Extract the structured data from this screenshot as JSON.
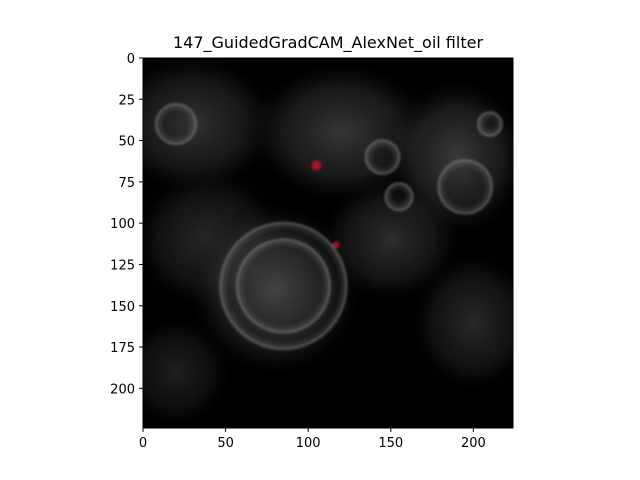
{
  "figure": {
    "title": "147_GuidedGradCAM_AlexNet_oil filter"
  },
  "image_panel": {
    "x_range": [
      0,
      224
    ],
    "y_range": [
      0,
      224
    ],
    "x_ticks": [
      0,
      50,
      100,
      150,
      200
    ],
    "y_ticks": [
      0,
      25,
      50,
      75,
      100,
      125,
      150,
      175,
      200
    ],
    "x_tick_labels": [
      "0",
      "50",
      "100",
      "150",
      "200"
    ],
    "y_tick_labels": [
      "0",
      "25",
      "50",
      "75",
      "100",
      "125",
      "150",
      "175",
      "200"
    ],
    "colors": {
      "background": "#000000",
      "heat_glow": "#4a4a4a",
      "ring": "#8a8a8a",
      "red_speck": "#c0102a"
    },
    "features": [
      {
        "kind": "ring",
        "cx": 85,
        "cy": 138,
        "r": 38
      },
      {
        "kind": "ring",
        "cx": 85,
        "cy": 138,
        "r": 28
      },
      {
        "kind": "ring",
        "cx": 195,
        "cy": 78,
        "r": 16
      },
      {
        "kind": "ring",
        "cx": 145,
        "cy": 60,
        "r": 10
      },
      {
        "kind": "ring",
        "cx": 155,
        "cy": 84,
        "r": 8
      },
      {
        "kind": "ring",
        "cx": 210,
        "cy": 40,
        "r": 7
      },
      {
        "kind": "ring",
        "cx": 20,
        "cy": 40,
        "r": 12
      },
      {
        "kind": "speck",
        "cx": 105,
        "cy": 65,
        "r": 3
      },
      {
        "kind": "speck",
        "cx": 117,
        "cy": 113,
        "r": 2
      }
    ],
    "glow_regions": [
      {
        "cx": 30,
        "cy": 40,
        "rx": 55,
        "ry": 45,
        "level": 0.55
      },
      {
        "cx": 120,
        "cy": 45,
        "rx": 60,
        "ry": 45,
        "level": 0.6
      },
      {
        "cx": 190,
        "cy": 60,
        "rx": 45,
        "ry": 50,
        "level": 0.65
      },
      {
        "cx": 40,
        "cy": 110,
        "rx": 50,
        "ry": 45,
        "level": 0.45
      },
      {
        "cx": 80,
        "cy": 140,
        "rx": 55,
        "ry": 55,
        "level": 0.75
      },
      {
        "cx": 150,
        "cy": 110,
        "rx": 45,
        "ry": 40,
        "level": 0.5
      },
      {
        "cx": 200,
        "cy": 160,
        "rx": 40,
        "ry": 45,
        "level": 0.45
      },
      {
        "cx": 20,
        "cy": 190,
        "rx": 35,
        "ry": 35,
        "level": 0.35
      }
    ]
  }
}
